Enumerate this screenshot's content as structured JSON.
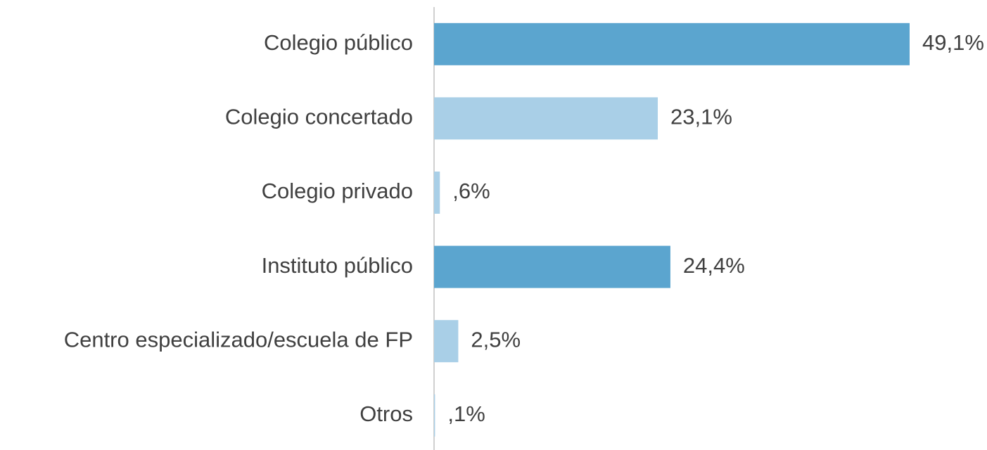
{
  "chart_data": {
    "type": "bar",
    "orientation": "horizontal",
    "categories": [
      "Colegio público",
      "Colegio concertado",
      "Colegio privado",
      "Instituto público",
      "Centro especializado/escuela de FP",
      "Otros"
    ],
    "values": [
      49.1,
      23.1,
      0.6,
      24.4,
      2.5,
      0.1
    ],
    "value_labels": [
      "49,1%",
      "23,1%",
      ",6%",
      "24,4%",
      "2,5%",
      ",1%"
    ],
    "colors": [
      "#5ba5cf",
      "#a9cfe7",
      "#a9cfe7",
      "#5ba5cf",
      "#a9cfe7",
      "#a9cfe7"
    ]
  }
}
